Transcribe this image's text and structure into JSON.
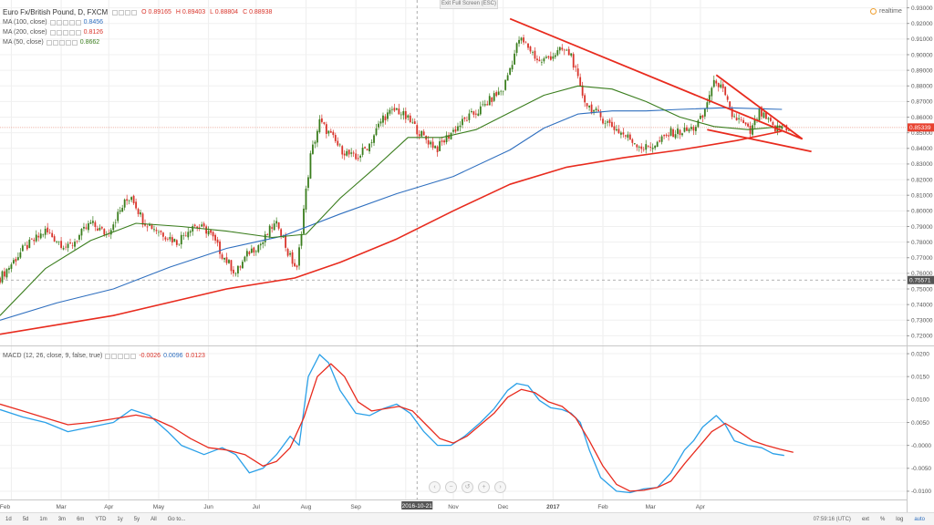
{
  "header": {
    "symbol": "Euro Fx/British Pound, D, FXCM",
    "ohlc": {
      "o": "O 0.89165",
      "h": "H 0.89403",
      "l": "L 0.88804",
      "c": "C 0.88938"
    },
    "ma100": {
      "label": "MA (100, close)",
      "value": "0.8456"
    },
    "ma200": {
      "label": "MA (200, close)",
      "value": "0.8126"
    },
    "ma50": {
      "label": "MA (50, close)",
      "value": "0.8662"
    },
    "macd": {
      "label": "MACD (12, 26, close, 9, false, true)",
      "v1": "-0.0026",
      "v2": "0.0096",
      "v3": "0.0123"
    }
  },
  "exit_fullscreen": "Exit Full Screen (ESC)",
  "realtime": "realtime",
  "toolbar": {
    "ranges": [
      "1d",
      "5d",
      "1m",
      "3m",
      "6m",
      "YTD",
      "1y",
      "5y",
      "All"
    ],
    "goto": "Go to...",
    "clock": "07:59:16 (UTC)",
    "right": [
      "ext",
      "%",
      "log",
      "auto"
    ]
  },
  "colors": {
    "up": "#3a7d1d",
    "down": "#d9342b",
    "ma50": "#3a7d1d",
    "ma100": "#2f6fbf",
    "ma200": "#e82b1e",
    "macd": "#2aa0e8",
    "signal": "#e82b1e",
    "trend": "#e82b1e"
  },
  "chart_data": [
    {
      "type": "candlestick",
      "x_axis_labels": [
        "Feb",
        "Mar",
        "Apr",
        "May",
        "Jun",
        "Jul",
        "Aug",
        "Sep",
        "Oct",
        "Nov",
        "Dec",
        "2017",
        "Feb",
        "Mar",
        "Apr"
      ],
      "crosshair_x_label": "2016-10-21",
      "y_ticks": [
        "0.93000",
        "0.92000",
        "0.91000",
        "0.90000",
        "0.89000",
        "0.88000",
        "0.87000",
        "0.86000",
        "0.85000",
        "0.84000",
        "0.83000",
        "0.82000",
        "0.81000",
        "0.80000",
        "0.79000",
        "0.78000",
        "0.77000",
        "0.76000",
        "0.75000",
        "0.74000",
        "0.73000",
        "0.72000"
      ],
      "ylim": [
        0.715,
        0.935
      ],
      "price_tag": "0.85339",
      "price_tag_value": 0.85339,
      "crosshair_tag": "0.75571",
      "crosshair_tag_value": 0.75571,
      "crosshair_date_index": 184,
      "close_path": [
        [
          0,
          0.757
        ],
        [
          10,
          0.775
        ],
        [
          20,
          0.787
        ],
        [
          30,
          0.776
        ],
        [
          40,
          0.792
        ],
        [
          47,
          0.785
        ],
        [
          55,
          0.805
        ],
        [
          58,
          0.81
        ],
        [
          63,
          0.794
        ],
        [
          68,
          0.789
        ],
        [
          78,
          0.78
        ],
        [
          85,
          0.791
        ],
        [
          92,
          0.787
        ],
        [
          98,
          0.772
        ],
        [
          104,
          0.76
        ],
        [
          110,
          0.774
        ],
        [
          116,
          0.78
        ],
        [
          120,
          0.79
        ],
        [
          123,
          0.791
        ],
        [
          127,
          0.773
        ],
        [
          131,
          0.762
        ],
        [
          134,
          0.801
        ],
        [
          137,
          0.835
        ],
        [
          141,
          0.857
        ],
        [
          145,
          0.85
        ],
        [
          150,
          0.84
        ],
        [
          157,
          0.833
        ],
        [
          163,
          0.843
        ],
        [
          169,
          0.86
        ],
        [
          175,
          0.865
        ],
        [
          181,
          0.857
        ],
        [
          187,
          0.847
        ],
        [
          193,
          0.84
        ],
        [
          199,
          0.85
        ],
        [
          205,
          0.858
        ],
        [
          212,
          0.865
        ],
        [
          217,
          0.872
        ],
        [
          222,
          0.878
        ],
        [
          226,
          0.896
        ],
        [
          229,
          0.91
        ],
        [
          233,
          0.905
        ],
        [
          238,
          0.895
        ],
        [
          243,
          0.899
        ],
        [
          248,
          0.903
        ],
        [
          252,
          0.9
        ],
        [
          256,
          0.878
        ],
        [
          259,
          0.868
        ],
        [
          265,
          0.86
        ],
        [
          272,
          0.852
        ],
        [
          278,
          0.846
        ],
        [
          284,
          0.84
        ],
        [
          290,
          0.843
        ],
        [
          296,
          0.85
        ],
        [
          302,
          0.851
        ],
        [
          306,
          0.853
        ],
        [
          310,
          0.86
        ],
        [
          313,
          0.875
        ],
        [
          316,
          0.884
        ],
        [
          319,
          0.876
        ],
        [
          323,
          0.861
        ],
        [
          327,
          0.857
        ],
        [
          331,
          0.85
        ],
        [
          335,
          0.863
        ],
        [
          339,
          0.857
        ],
        [
          342,
          0.852
        ],
        [
          345,
          0.854
        ],
        [
          348,
          0.853
        ]
      ],
      "ma50": [
        [
          0,
          0.733
        ],
        [
          20,
          0.763
        ],
        [
          40,
          0.781
        ],
        [
          60,
          0.792
        ],
        [
          80,
          0.79
        ],
        [
          100,
          0.787
        ],
        [
          120,
          0.783
        ],
        [
          135,
          0.785
        ],
        [
          150,
          0.808
        ],
        [
          165,
          0.827
        ],
        [
          180,
          0.847
        ],
        [
          195,
          0.847
        ],
        [
          210,
          0.852
        ],
        [
          225,
          0.863
        ],
        [
          240,
          0.874
        ],
        [
          255,
          0.88
        ],
        [
          270,
          0.878
        ],
        [
          285,
          0.87
        ],
        [
          300,
          0.86
        ],
        [
          315,
          0.854
        ],
        [
          330,
          0.852
        ],
        [
          345,
          0.854
        ]
      ],
      "ma100": [
        [
          0,
          0.73
        ],
        [
          25,
          0.741
        ],
        [
          50,
          0.75
        ],
        [
          75,
          0.764
        ],
        [
          100,
          0.776
        ],
        [
          125,
          0.784
        ],
        [
          150,
          0.798
        ],
        [
          175,
          0.811
        ],
        [
          200,
          0.822
        ],
        [
          225,
          0.839
        ],
        [
          240,
          0.853
        ],
        [
          255,
          0.862
        ],
        [
          270,
          0.864
        ],
        [
          285,
          0.864
        ],
        [
          300,
          0.865
        ],
        [
          320,
          0.866
        ],
        [
          345,
          0.865
        ]
      ],
      "ma200": [
        [
          0,
          0.721
        ],
        [
          50,
          0.733
        ],
        [
          100,
          0.75
        ],
        [
          130,
          0.757
        ],
        [
          150,
          0.767
        ],
        [
          175,
          0.782
        ],
        [
          200,
          0.8
        ],
        [
          225,
          0.817
        ],
        [
          250,
          0.828
        ],
        [
          275,
          0.834
        ],
        [
          300,
          0.839
        ],
        [
          325,
          0.845
        ],
        [
          345,
          0.851
        ]
      ],
      "trendlines": [
        {
          "from": [
            225,
            0.923
          ],
          "to": [
            354,
            0.846
          ]
        },
        {
          "from": [
            316,
            0.887
          ],
          "to": [
            354,
            0.846
          ]
        },
        {
          "from": [
            312,
            0.852
          ],
          "to": [
            358,
            0.838
          ]
        }
      ]
    },
    {
      "type": "line",
      "y_ticks": [
        "0.0200",
        "0.0150",
        "0.0100",
        "0.0050",
        "-0.0000",
        "-0.0050",
        "-0.0100"
      ],
      "ylim": [
        -0.0118,
        0.0212
      ],
      "macd": [
        [
          0,
          0.0078
        ],
        [
          10,
          0.0062
        ],
        [
          20,
          0.005
        ],
        [
          30,
          0.003
        ],
        [
          40,
          0.004
        ],
        [
          50,
          0.005
        ],
        [
          58,
          0.0078
        ],
        [
          66,
          0.0065
        ],
        [
          74,
          0.003
        ],
        [
          80,
          0.0
        ],
        [
          90,
          -0.002
        ],
        [
          98,
          -0.0005
        ],
        [
          104,
          -0.002
        ],
        [
          110,
          -0.006
        ],
        [
          116,
          -0.005
        ],
        [
          122,
          -0.002
        ],
        [
          128,
          0.002
        ],
        [
          132,
          0.0
        ],
        [
          136,
          0.015
        ],
        [
          141,
          0.0198
        ],
        [
          145,
          0.018
        ],
        [
          150,
          0.012
        ],
        [
          157,
          0.007
        ],
        [
          163,
          0.0065
        ],
        [
          169,
          0.008
        ],
        [
          175,
          0.009
        ],
        [
          181,
          0.007
        ],
        [
          187,
          0.003
        ],
        [
          193,
          0.0
        ],
        [
          199,
          0.0
        ],
        [
          205,
          0.002
        ],
        [
          212,
          0.005
        ],
        [
          218,
          0.008
        ],
        [
          224,
          0.012
        ],
        [
          228,
          0.0135
        ],
        [
          233,
          0.013
        ],
        [
          238,
          0.0098
        ],
        [
          243,
          0.0082
        ],
        [
          248,
          0.0078
        ],
        [
          252,
          0.007
        ],
        [
          256,
          0.005
        ],
        [
          260,
          -0.001
        ],
        [
          265,
          -0.007
        ],
        [
          272,
          -0.01
        ],
        [
          278,
          -0.0103
        ],
        [
          284,
          -0.0095
        ],
        [
          290,
          -0.0092
        ],
        [
          296,
          -0.006
        ],
        [
          302,
          -0.001
        ],
        [
          306,
          0.001
        ],
        [
          310,
          0.004
        ],
        [
          316,
          0.0065
        ],
        [
          320,
          0.0045
        ],
        [
          324,
          0.001
        ],
        [
          330,
          0.0
        ],
        [
          336,
          -0.0005
        ],
        [
          341,
          -0.0018
        ],
        [
          346,
          -0.0022
        ]
      ],
      "signal": [
        [
          0,
          0.009
        ],
        [
          10,
          0.0075
        ],
        [
          20,
          0.006
        ],
        [
          30,
          0.0045
        ],
        [
          40,
          0.005
        ],
        [
          50,
          0.0058
        ],
        [
          60,
          0.0066
        ],
        [
          68,
          0.0058
        ],
        [
          76,
          0.004
        ],
        [
          84,
          0.0015
        ],
        [
          92,
          -0.0005
        ],
        [
          100,
          -0.001
        ],
        [
          108,
          -0.002
        ],
        [
          116,
          -0.0045
        ],
        [
          122,
          -0.0035
        ],
        [
          128,
          -0.0005
        ],
        [
          134,
          0.006
        ],
        [
          140,
          0.015
        ],
        [
          146,
          0.0178
        ],
        [
          152,
          0.015
        ],
        [
          158,
          0.0095
        ],
        [
          164,
          0.0075
        ],
        [
          170,
          0.008
        ],
        [
          176,
          0.0085
        ],
        [
          182,
          0.0075
        ],
        [
          188,
          0.0045
        ],
        [
          194,
          0.0015
        ],
        [
          200,
          0.0005
        ],
        [
          206,
          0.002
        ],
        [
          212,
          0.0045
        ],
        [
          218,
          0.007
        ],
        [
          224,
          0.0105
        ],
        [
          230,
          0.0122
        ],
        [
          236,
          0.0115
        ],
        [
          242,
          0.0095
        ],
        [
          248,
          0.0085
        ],
        [
          254,
          0.006
        ],
        [
          260,
          0.001
        ],
        [
          266,
          -0.0045
        ],
        [
          272,
          -0.0085
        ],
        [
          278,
          -0.01
        ],
        [
          284,
          -0.0098
        ],
        [
          290,
          -0.0092
        ],
        [
          296,
          -0.0078
        ],
        [
          302,
          -0.004
        ],
        [
          308,
          -0.0005
        ],
        [
          314,
          0.003
        ],
        [
          320,
          0.0048
        ],
        [
          326,
          0.003
        ],
        [
          332,
          0.001
        ],
        [
          338,
          0.0
        ],
        [
          344,
          -0.0008
        ],
        [
          350,
          -0.0015
        ]
      ]
    }
  ]
}
